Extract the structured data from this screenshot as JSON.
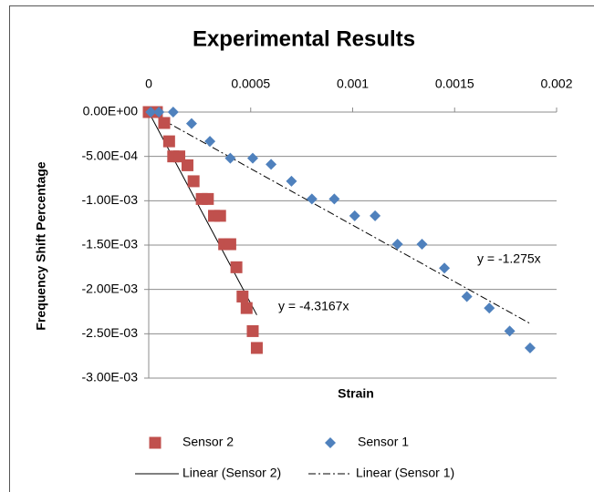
{
  "chart_data": {
    "type": "scatter",
    "title": "Experimental Results",
    "x_label": "Strain",
    "y_label": "Frequency Shift Percentage",
    "xlim": [
      0,
      0.002
    ],
    "xticks": [
      0,
      0.0005,
      0.001,
      0.0015,
      0.002
    ],
    "ylim": [
      -0.003,
      0
    ],
    "yticks": [
      {
        "value": 0,
        "label": "0.00E+00"
      },
      {
        "value": -0.0005,
        "label": "-5.00E-04"
      },
      {
        "value": -0.001,
        "label": "-1.00E-03"
      },
      {
        "value": -0.0015,
        "label": "-1.50E-03"
      },
      {
        "value": -0.002,
        "label": "-2.00E-03"
      },
      {
        "value": -0.0025,
        "label": "-2.50E-03"
      },
      {
        "value": -0.003,
        "label": "-3.00E-03"
      }
    ],
    "grid": true,
    "legend": "bottom",
    "series": [
      {
        "name": "Sensor 2",
        "color": "#c0504d",
        "marker": "square",
        "x": [
          0,
          2e-05,
          4e-05,
          7.6e-05,
          0.0001,
          0.00012,
          0.00015,
          0.00019,
          0.00022,
          0.00026,
          0.00029,
          0.00032,
          0.00035,
          0.00037,
          0.0004,
          0.00043,
          0.00046,
          0.00048,
          0.00051,
          0.00053
        ],
        "values": [
          0,
          0,
          0,
          -0.000123,
          -0.00033,
          -0.0005,
          -0.0005,
          -0.0006,
          -0.00078,
          -0.00098,
          -0.00098,
          -0.00117,
          -0.00117,
          -0.00149,
          -0.00149,
          -0.00175,
          -0.00208,
          -0.00221,
          -0.00247,
          -0.00266
        ],
        "trendline": {
          "name": "Linear (Sensor 2)",
          "slope": -4.3167,
          "label": "y = -4.3167x",
          "style": "solid"
        }
      },
      {
        "name": "Sensor 1",
        "color": "#4f81bd",
        "marker": "diamond",
        "x": [
          1e-05,
          5e-05,
          0.00012,
          0.00021,
          0.0003,
          0.0004,
          0.00051,
          0.0006,
          0.0007,
          0.0008,
          0.00091,
          0.00101,
          0.00111,
          0.00122,
          0.00134,
          0.00145,
          0.00156,
          0.00167,
          0.00177,
          0.00187
        ],
        "values": [
          0,
          0,
          0,
          -0.00013,
          -0.00033,
          -0.00052,
          -0.00052,
          -0.00059,
          -0.00078,
          -0.00098,
          -0.00098,
          -0.00117,
          -0.00117,
          -0.00149,
          -0.00149,
          -0.00176,
          -0.00208,
          -0.00221,
          -0.00247,
          -0.00266
        ],
        "trendline": {
          "name": "Linear (Sensor 1)",
          "slope": -1.275,
          "label": "y = -1.275x",
          "style": "dashdot"
        }
      }
    ]
  }
}
